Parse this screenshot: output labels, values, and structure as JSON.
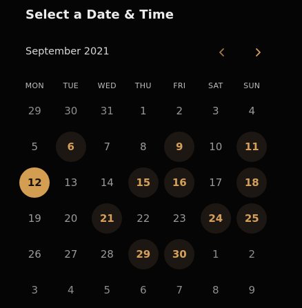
{
  "header": {
    "title": "Select a Date & Time"
  },
  "calendar": {
    "month_label": "September 2021",
    "prev_icon": "chevron-left-icon",
    "next_icon": "chevron-right-icon",
    "accent_color": "#d39e52",
    "weekdays": [
      "MON",
      "TUE",
      "WED",
      "THU",
      "FRI",
      "SAT",
      "SUN"
    ],
    "days": [
      {
        "label": "29",
        "state": "muted"
      },
      {
        "label": "30",
        "state": "muted"
      },
      {
        "label": "31",
        "state": "muted"
      },
      {
        "label": "1",
        "state": "unavailable"
      },
      {
        "label": "2",
        "state": "unavailable"
      },
      {
        "label": "3",
        "state": "unavailable"
      },
      {
        "label": "4",
        "state": "unavailable"
      },
      {
        "label": "5",
        "state": "unavailable"
      },
      {
        "label": "6",
        "state": "available"
      },
      {
        "label": "7",
        "state": "unavailable"
      },
      {
        "label": "8",
        "state": "unavailable"
      },
      {
        "label": "9",
        "state": "available"
      },
      {
        "label": "10",
        "state": "unavailable"
      },
      {
        "label": "11",
        "state": "available"
      },
      {
        "label": "12",
        "state": "selected"
      },
      {
        "label": "13",
        "state": "unavailable"
      },
      {
        "label": "14",
        "state": "unavailable"
      },
      {
        "label": "15",
        "state": "available"
      },
      {
        "label": "16",
        "state": "available"
      },
      {
        "label": "17",
        "state": "unavailable"
      },
      {
        "label": "18",
        "state": "available"
      },
      {
        "label": "19",
        "state": "unavailable"
      },
      {
        "label": "20",
        "state": "unavailable"
      },
      {
        "label": "21",
        "state": "available"
      },
      {
        "label": "22",
        "state": "unavailable"
      },
      {
        "label": "23",
        "state": "unavailable"
      },
      {
        "label": "24",
        "state": "available"
      },
      {
        "label": "25",
        "state": "available"
      },
      {
        "label": "26",
        "state": "unavailable"
      },
      {
        "label": "27",
        "state": "unavailable"
      },
      {
        "label": "28",
        "state": "unavailable"
      },
      {
        "label": "29",
        "state": "available"
      },
      {
        "label": "30",
        "state": "available"
      },
      {
        "label": "1",
        "state": "muted"
      },
      {
        "label": "2",
        "state": "muted"
      },
      {
        "label": "3",
        "state": "muted"
      },
      {
        "label": "4",
        "state": "muted"
      },
      {
        "label": "5",
        "state": "muted"
      },
      {
        "label": "6",
        "state": "muted"
      },
      {
        "label": "7",
        "state": "muted"
      },
      {
        "label": "8",
        "state": "muted"
      },
      {
        "label": "9",
        "state": "muted"
      }
    ]
  }
}
